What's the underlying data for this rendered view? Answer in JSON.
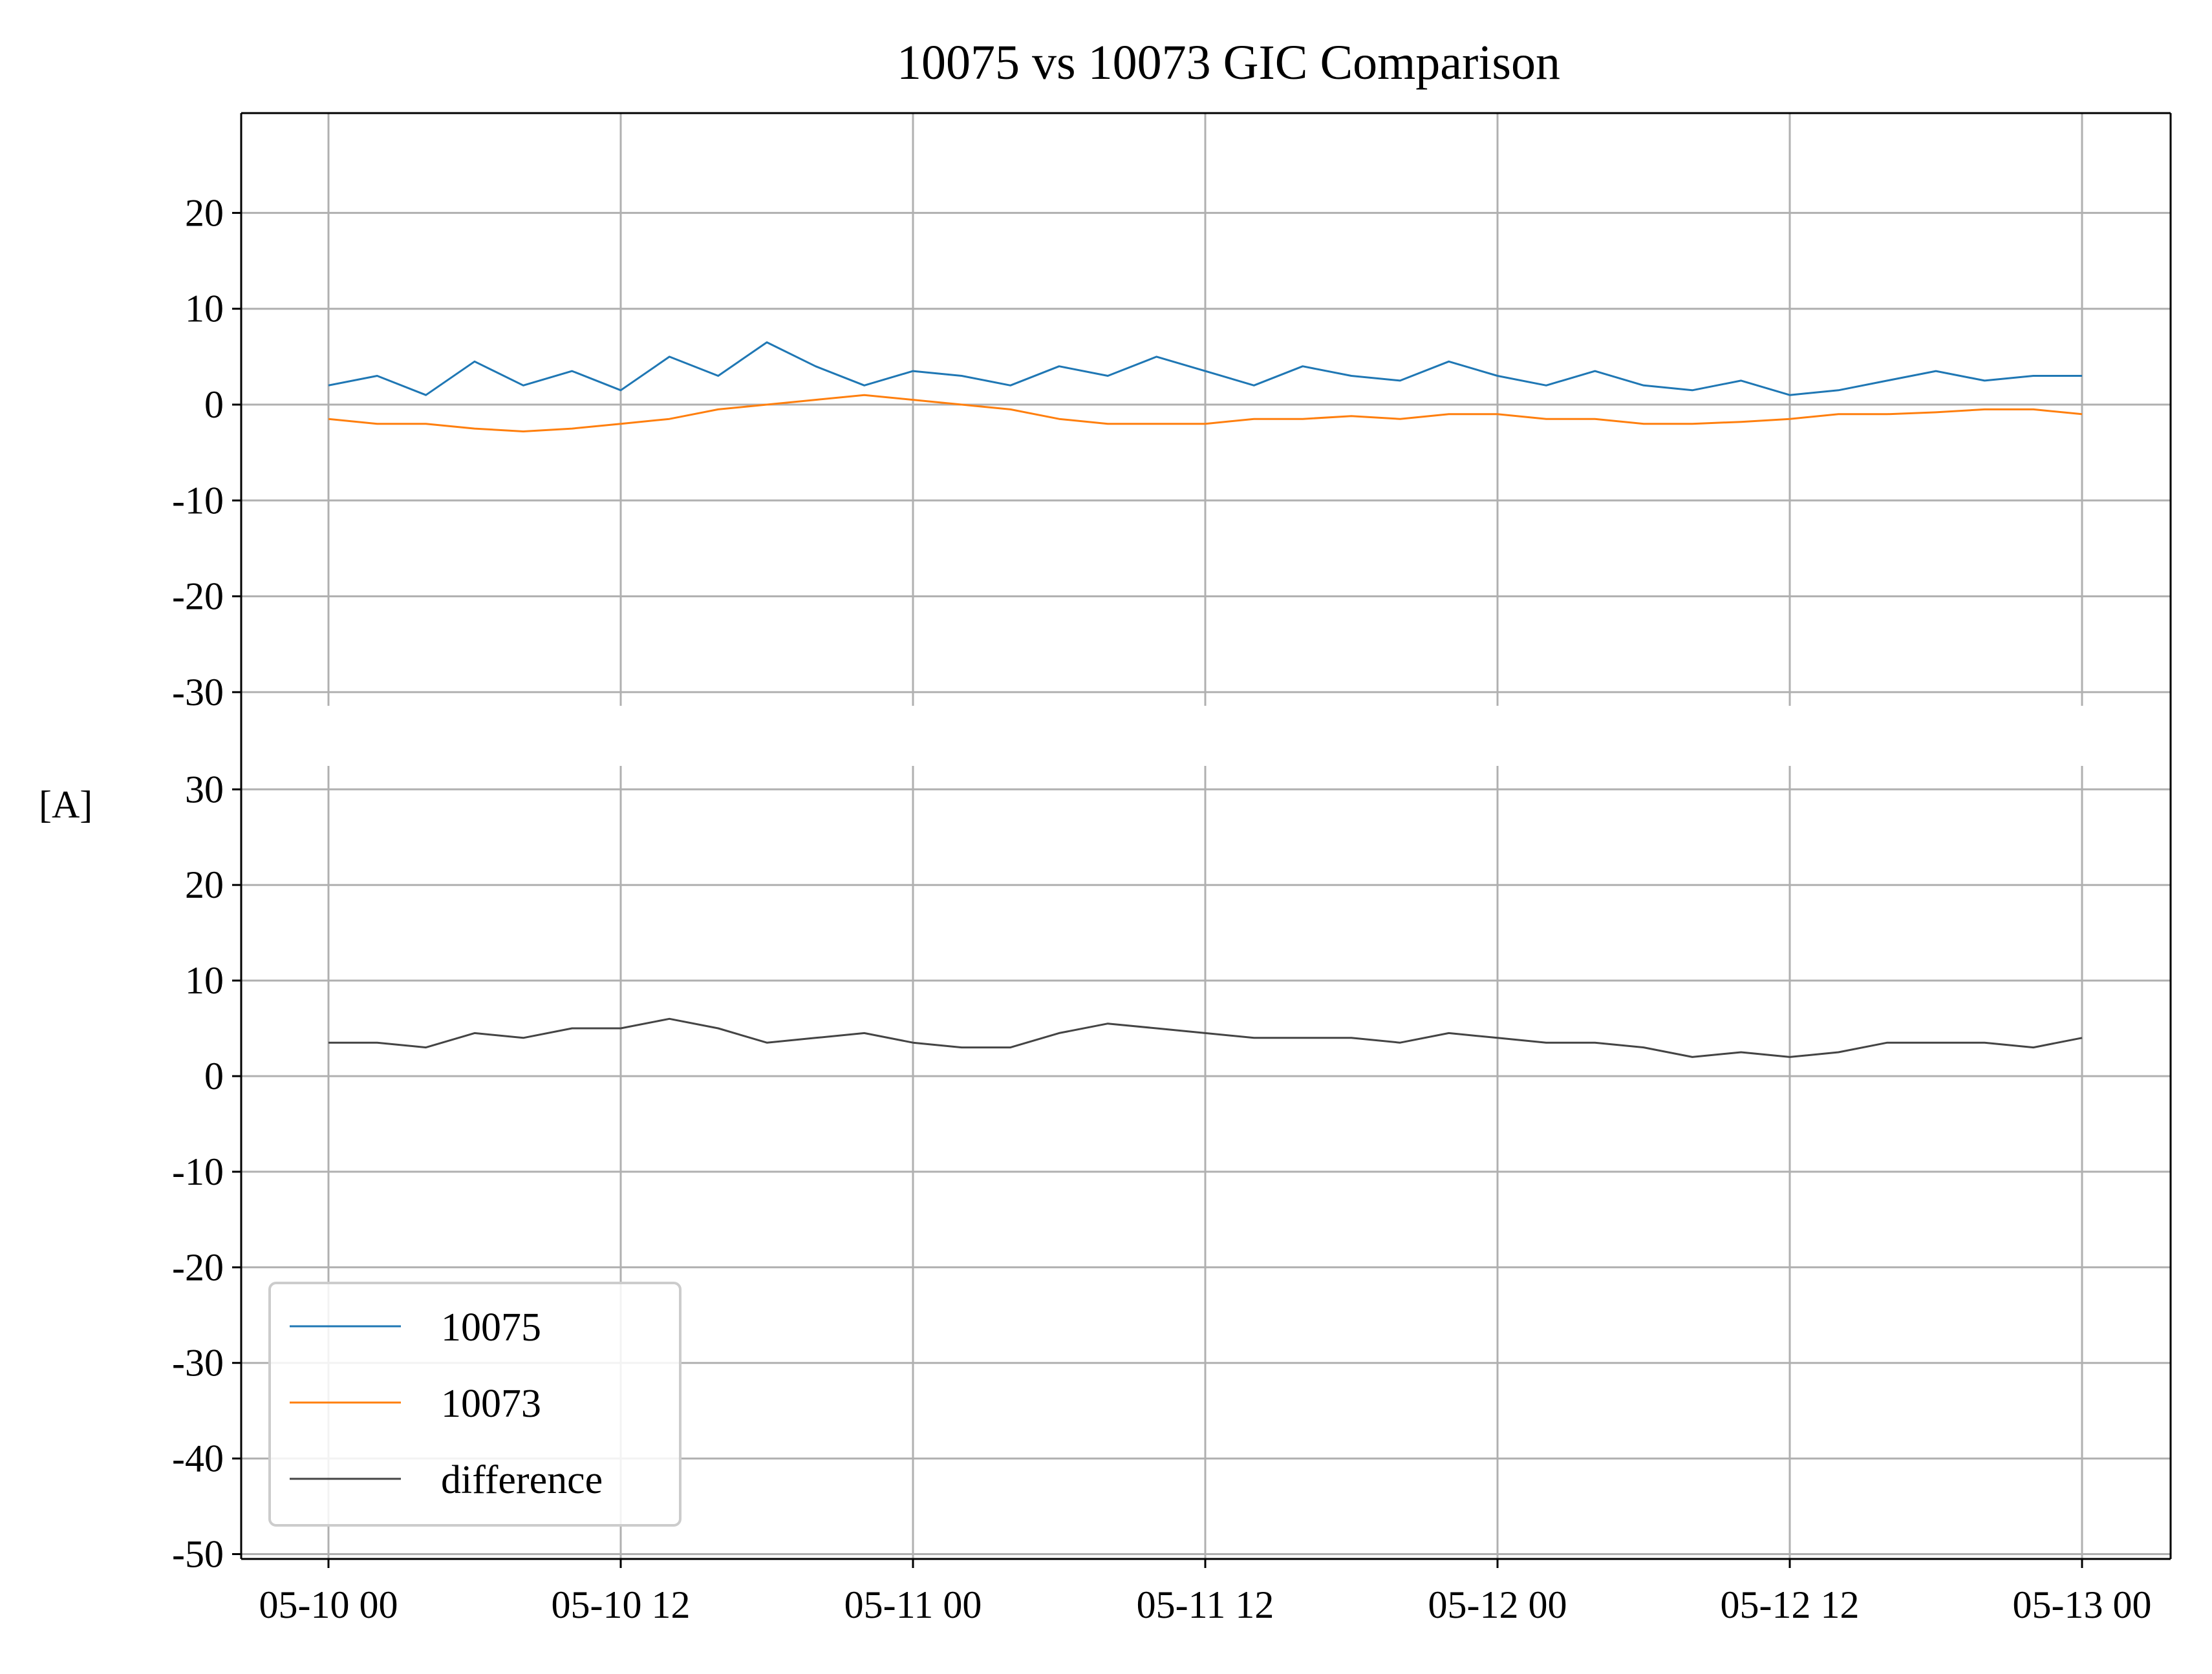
{
  "chart_data": {
    "type": "line",
    "title": "10075 vs 10073 GIC Comparison",
    "ylabel": "[A]",
    "xlabel": "",
    "grid": true,
    "legend_position": "lower-left",
    "x_ticks": [
      "05-10 00",
      "05-10 12",
      "05-11 00",
      "05-11 12",
      "05-12 00",
      "05-12 12",
      "05-13 00"
    ],
    "x_range": [
      "05-10 00",
      "05-13 00"
    ],
    "panels": [
      {
        "name": "top",
        "ylim": [
          -30,
          30
        ],
        "y_ticks": [
          "20",
          "10",
          "0",
          "-10",
          "-20",
          "-30"
        ],
        "series": [
          {
            "name": "10075",
            "color": "#1f77b4",
            "points": [
              [
                "05-10 00",
                2.0
              ],
              [
                "05-10 02",
                3.0
              ],
              [
                "05-10 04",
                1.0
              ],
              [
                "05-10 06",
                4.5
              ],
              [
                "05-10 08",
                2.0
              ],
              [
                "05-10 10",
                3.5
              ],
              [
                "05-10 12",
                1.5
              ],
              [
                "05-10 14",
                5.0
              ],
              [
                "05-10 16",
                3.0
              ],
              [
                "05-10 18",
                6.5
              ],
              [
                "05-10 20",
                4.0
              ],
              [
                "05-10 22",
                2.0
              ],
              [
                "05-11 00",
                3.5
              ],
              [
                "05-11 02",
                3.0
              ],
              [
                "05-11 04",
                2.0
              ],
              [
                "05-11 06",
                4.0
              ],
              [
                "05-11 08",
                3.0
              ],
              [
                "05-11 10",
                5.0
              ],
              [
                "05-11 12",
                3.5
              ],
              [
                "05-11 14",
                2.0
              ],
              [
                "05-11 16",
                4.0
              ],
              [
                "05-11 18",
                3.0
              ],
              [
                "05-11 20",
                2.5
              ],
              [
                "05-11 22",
                4.5
              ],
              [
                "05-12 00",
                3.0
              ],
              [
                "05-12 02",
                2.0
              ],
              [
                "05-12 04",
                3.5
              ],
              [
                "05-12 06",
                2.0
              ],
              [
                "05-12 08",
                1.5
              ],
              [
                "05-12 10",
                2.5
              ],
              [
                "05-12 12",
                1.0
              ],
              [
                "05-12 14",
                1.5
              ],
              [
                "05-12 16",
                2.5
              ],
              [
                "05-12 18",
                3.5
              ],
              [
                "05-12 20",
                2.5
              ],
              [
                "05-12 22",
                3.0
              ],
              [
                "05-13 00",
                3.0
              ]
            ]
          },
          {
            "name": "10073",
            "color": "#ff7f0e",
            "points": [
              [
                "05-10 00",
                -1.5
              ],
              [
                "05-10 02",
                -2.0
              ],
              [
                "05-10 04",
                -2.0
              ],
              [
                "05-10 06",
                -2.5
              ],
              [
                "05-10 08",
                -2.8
              ],
              [
                "05-10 10",
                -2.5
              ],
              [
                "05-10 12",
                -2.0
              ],
              [
                "05-10 14",
                -1.5
              ],
              [
                "05-10 16",
                -0.5
              ],
              [
                "05-10 18",
                0.0
              ],
              [
                "05-10 20",
                0.5
              ],
              [
                "05-10 22",
                1.0
              ],
              [
                "05-11 00",
                0.5
              ],
              [
                "05-11 02",
                0.0
              ],
              [
                "05-11 04",
                -0.5
              ],
              [
                "05-11 06",
                -1.5
              ],
              [
                "05-11 08",
                -2.0
              ],
              [
                "05-11 10",
                -2.0
              ],
              [
                "05-11 12",
                -2.0
              ],
              [
                "05-11 14",
                -1.5
              ],
              [
                "05-11 16",
                -1.5
              ],
              [
                "05-11 18",
                -1.2
              ],
              [
                "05-11 20",
                -1.5
              ],
              [
                "05-11 22",
                -1.0
              ],
              [
                "05-12 00",
                -1.0
              ],
              [
                "05-12 02",
                -1.5
              ],
              [
                "05-12 04",
                -1.5
              ],
              [
                "05-12 06",
                -2.0
              ],
              [
                "05-12 08",
                -2.0
              ],
              [
                "05-12 10",
                -1.8
              ],
              [
                "05-12 12",
                -1.5
              ],
              [
                "05-12 14",
                -1.0
              ],
              [
                "05-12 16",
                -1.0
              ],
              [
                "05-12 18",
                -0.8
              ],
              [
                "05-12 20",
                -0.5
              ],
              [
                "05-12 22",
                -0.5
              ],
              [
                "05-13 00",
                -1.0
              ]
            ]
          }
        ]
      },
      {
        "name": "bottom",
        "ylim": [
          -50,
          32
        ],
        "y_ticks": [
          "30",
          "20",
          "10",
          "0",
          "-10",
          "-20",
          "-30",
          "-40",
          "-50"
        ],
        "series": [
          {
            "name": "difference",
            "color": "#444444",
            "points": [
              [
                "05-10 00",
                3.5
              ],
              [
                "05-10 02",
                3.5
              ],
              [
                "05-10 04",
                3.0
              ],
              [
                "05-10 06",
                4.5
              ],
              [
                "05-10 08",
                4.0
              ],
              [
                "05-10 10",
                5.0
              ],
              [
                "05-10 12",
                5.0
              ],
              [
                "05-10 14",
                6.0
              ],
              [
                "05-10 16",
                5.0
              ],
              [
                "05-10 18",
                3.5
              ],
              [
                "05-10 20",
                4.0
              ],
              [
                "05-10 22",
                4.5
              ],
              [
                "05-11 00",
                3.5
              ],
              [
                "05-11 02",
                3.0
              ],
              [
                "05-11 04",
                3.0
              ],
              [
                "05-11 06",
                4.5
              ],
              [
                "05-11 08",
                5.5
              ],
              [
                "05-11 10",
                5.0
              ],
              [
                "05-11 12",
                4.5
              ],
              [
                "05-11 14",
                4.0
              ],
              [
                "05-11 16",
                4.0
              ],
              [
                "05-11 18",
                4.0
              ],
              [
                "05-11 20",
                3.5
              ],
              [
                "05-11 22",
                4.5
              ],
              [
                "05-12 00",
                4.0
              ],
              [
                "05-12 02",
                3.5
              ],
              [
                "05-12 04",
                3.5
              ],
              [
                "05-12 06",
                3.0
              ],
              [
                "05-12 08",
                2.0
              ],
              [
                "05-12 10",
                2.5
              ],
              [
                "05-12 12",
                2.0
              ],
              [
                "05-12 14",
                2.5
              ],
              [
                "05-12 16",
                3.5
              ],
              [
                "05-12 18",
                3.5
              ],
              [
                "05-12 20",
                3.5
              ],
              [
                "05-12 22",
                3.0
              ],
              [
                "05-13 00",
                4.0
              ]
            ]
          }
        ]
      }
    ],
    "legend": [
      {
        "name": "10075",
        "color": "#1f77b4"
      },
      {
        "name": "10073",
        "color": "#ff7f0e"
      },
      {
        "name": "difference",
        "color": "#444444"
      }
    ]
  }
}
